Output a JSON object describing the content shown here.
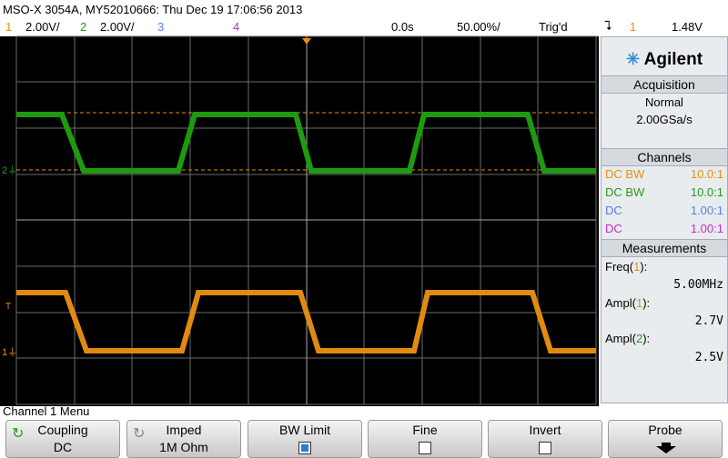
{
  "header": {
    "title": "MSO-X 3054A, MY52010666: Thu Dec 19 17:06:56 2013"
  },
  "channel_bar": {
    "ch1": {
      "number": "1",
      "scale": "2.00V/"
    },
    "ch2": {
      "number": "2",
      "scale": "2.00V/"
    },
    "ch3": {
      "number": "3"
    },
    "ch4": {
      "number": "4"
    },
    "delay": "0.0s",
    "timebase": "50.00%/",
    "trigger_status": "Trig'd",
    "trigger_source": "1",
    "trigger_level": "1.48V"
  },
  "side_panel": {
    "brand": "Agilent",
    "acquisition": {
      "header": "Acquisition",
      "mode": "Normal",
      "sample_rate": "2.00GSa/s"
    },
    "channels": {
      "header": "Channels",
      "rows": [
        {
          "coupling": "DC BW",
          "ratio": "10.0:1"
        },
        {
          "coupling": "DC BW",
          "ratio": "10.0:1"
        },
        {
          "coupling": "DC",
          "ratio": "1.00:1"
        },
        {
          "coupling": "DC",
          "ratio": "1.00:1"
        }
      ]
    },
    "measurements": {
      "header": "Measurements",
      "items": [
        {
          "name": "Freq(",
          "channel": "1",
          "suffix": "):",
          "value": "5.00MHz"
        },
        {
          "name": "Ampl(",
          "channel": "1",
          "suffix": "):",
          "value": "2.7V"
        },
        {
          "name": "Ampl(",
          "channel": "2",
          "suffix": "):",
          "value": "2.5V"
        }
      ]
    }
  },
  "menu": {
    "title": "Channel 1 Menu",
    "softkeys": [
      {
        "label": "Coupling",
        "value": "DC"
      },
      {
        "label": "Imped",
        "value": "1M Ohm"
      },
      {
        "label": "BW Limit"
      },
      {
        "label": "Fine"
      },
      {
        "label": "Invert"
      },
      {
        "label": "Probe"
      }
    ]
  }
}
